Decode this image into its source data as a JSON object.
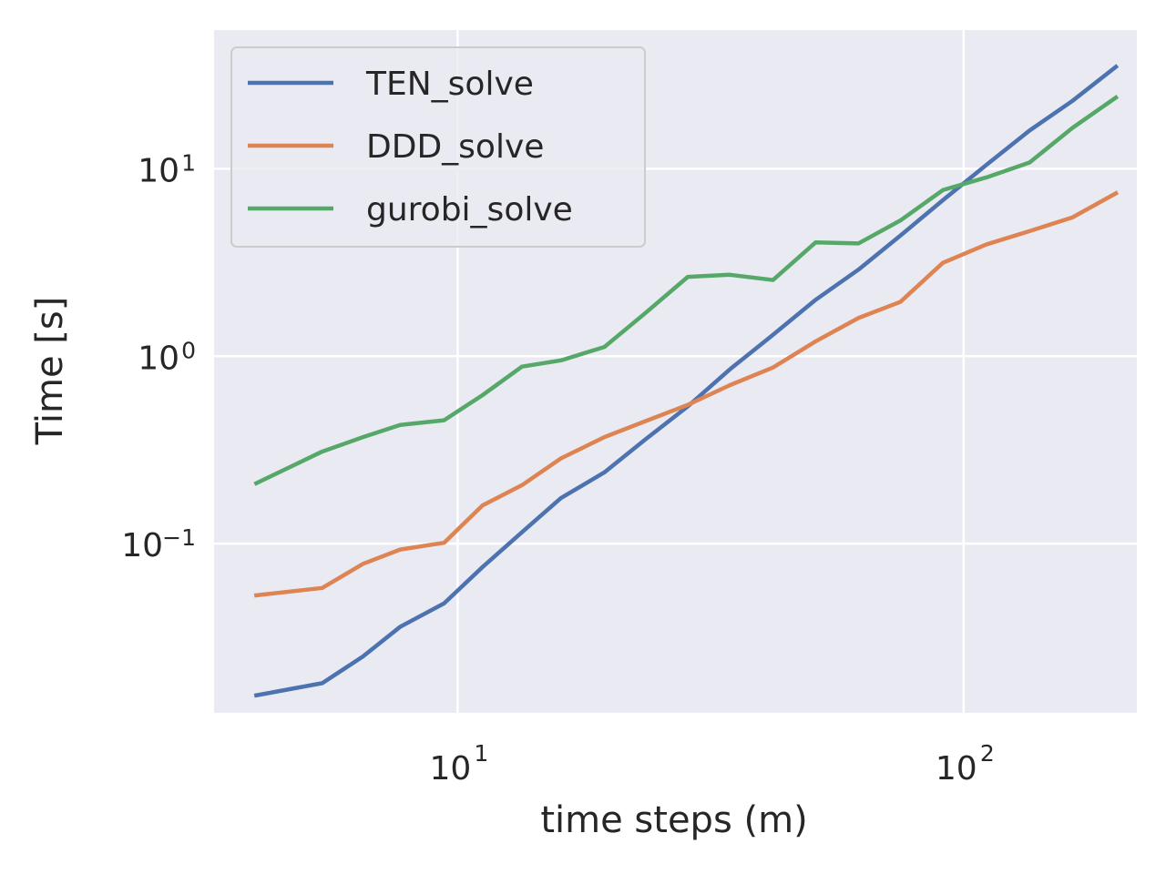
{
  "chart_data": {
    "type": "line",
    "xlabel": "time steps (m)",
    "ylabel": "Time [s]",
    "xscale": "log",
    "yscale": "log",
    "xlim": [
      3.3,
      220
    ],
    "ylim": [
      0.0125,
      55
    ],
    "grid": true,
    "legend_position": "upper-left",
    "x_ticks": [
      {
        "value": 10,
        "base": "10",
        "exp": "1"
      },
      {
        "value": 100,
        "base": "10",
        "exp": "2"
      }
    ],
    "y_ticks": [
      {
        "value": 0.1,
        "base": "10",
        "exp": "−1"
      },
      {
        "value": 1,
        "base": "10",
        "exp": "0"
      },
      {
        "value": 10,
        "base": "10",
        "exp": "1"
      }
    ],
    "x": [
      4,
      5.4,
      6.5,
      7.7,
      9.4,
      11.2,
      13.4,
      16,
      19.5,
      23.5,
      28.5,
      34.5,
      42,
      51,
      62,
      75,
      91,
      111,
      135,
      164,
      200
    ],
    "series": [
      {
        "name": "TEN_solve",
        "color": "#4c72b0",
        "values": [
          0.0155,
          0.018,
          0.025,
          0.036,
          0.048,
          0.075,
          0.115,
          0.175,
          0.24,
          0.36,
          0.54,
          0.85,
          1.3,
          2.0,
          2.9,
          4.4,
          6.8,
          10.5,
          16,
          23,
          35
        ]
      },
      {
        "name": "DDD_solve",
        "color": "#dd8452",
        "values": [
          0.053,
          0.058,
          0.078,
          0.093,
          0.101,
          0.16,
          0.205,
          0.285,
          0.37,
          0.45,
          0.55,
          0.7,
          0.87,
          1.2,
          1.6,
          1.95,
          3.15,
          3.95,
          4.65,
          5.5,
          7.4
        ]
      },
      {
        "name": "gurobi_solve",
        "color": "#55a868",
        "values": [
          0.21,
          0.31,
          0.37,
          0.43,
          0.455,
          0.62,
          0.88,
          0.95,
          1.12,
          1.7,
          2.65,
          2.72,
          2.55,
          4.05,
          4.0,
          5.3,
          7.7,
          9.0,
          10.8,
          16.5,
          24
        ]
      }
    ]
  }
}
